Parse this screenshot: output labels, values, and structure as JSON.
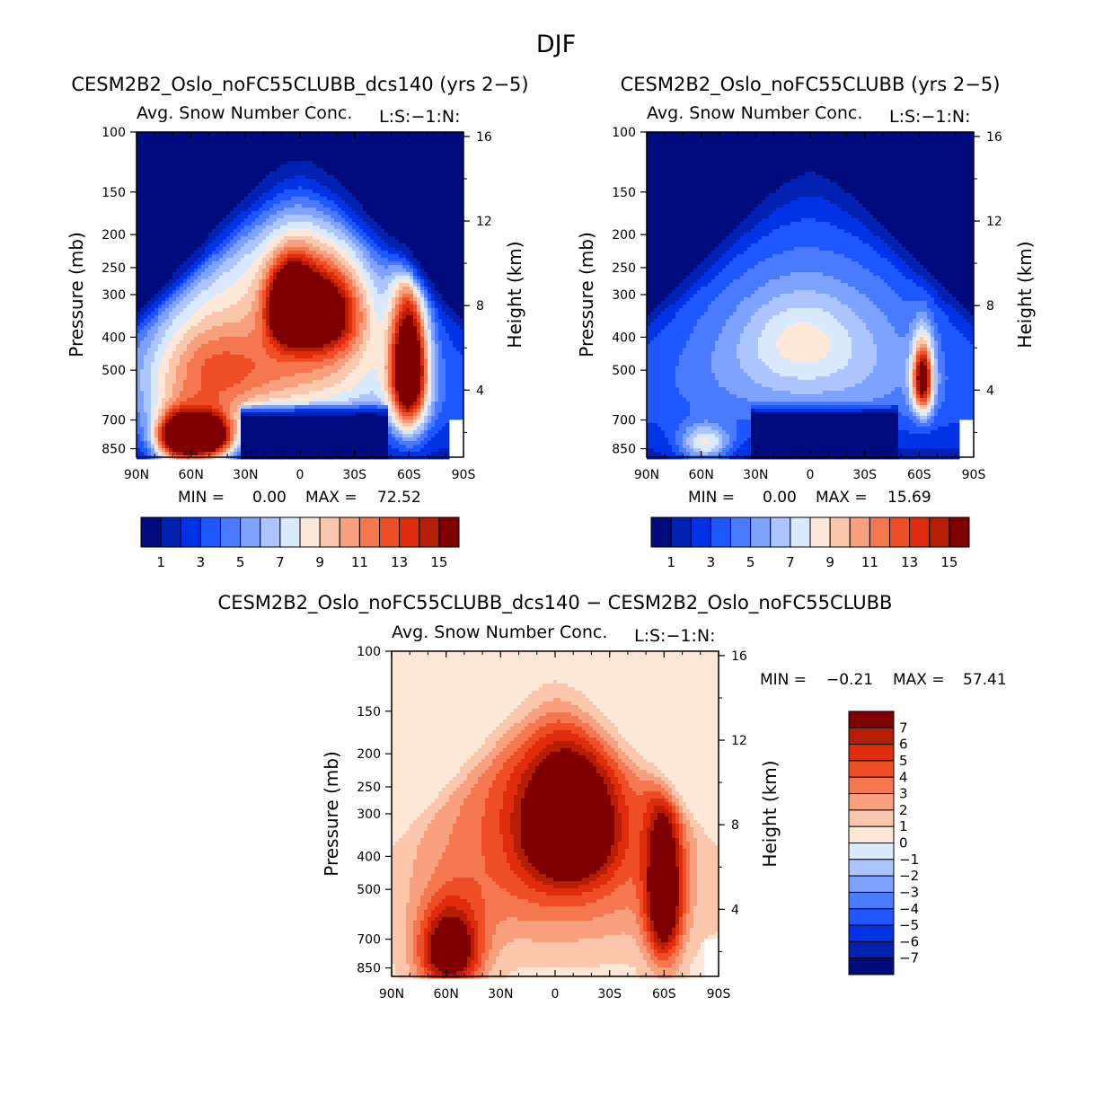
{
  "figure": {
    "title": "DJF",
    "field_label": "Avg. Snow Number Conc.",
    "level_label": "L:S:−1:N:",
    "ylabel": "Pressure (mb)",
    "ylabel_right": "Height (km)",
    "minmax_labels": {
      "min": "MIN =",
      "max": "MAX ="
    }
  },
  "colors": {
    "seq": [
      "#000c7d",
      "#0021b2",
      "#0032e6",
      "#1e56ff",
      "#4a7bff",
      "#7ea2ff",
      "#adc5ff",
      "#d9eaff",
      "#fde8d8",
      "#fbc7ac",
      "#f8a07e",
      "#f57750",
      "#ee4d26",
      "#de2c0d",
      "#b51d05",
      "#7f0000"
    ],
    "diverging": [
      "#000c7d",
      "#0021b2",
      "#0032e6",
      "#1e56ff",
      "#4a7bff",
      "#7ea2ff",
      "#adc5ff",
      "#d9eaff",
      "#fde8d8",
      "#fbc7ac",
      "#f8a07e",
      "#f57750",
      "#ee4d26",
      "#de2c0d",
      "#b51d05",
      "#7f0000"
    ]
  },
  "chart_data": [
    {
      "type": "heatmap",
      "id": "panel-a",
      "title": "CESM2B2_Oslo_noFC55CLUBB_dcs140 (yrs 2−5)",
      "xlabel": "",
      "xticks": [
        "90N",
        "60N",
        "30N",
        "0",
        "30S",
        "60S",
        "90S"
      ],
      "xlim": [
        90,
        -90
      ],
      "ylim_mb": [
        100,
        900
      ],
      "yticks_mb": [
        100,
        150,
        200,
        250,
        300,
        400,
        500,
        700,
        850
      ],
      "yticks_right_km": [
        16,
        12,
        8,
        4
      ],
      "min_value": "0.00",
      "max_value": "72.52",
      "colorbar_labels": [
        "1",
        "3",
        "5",
        "7",
        "9",
        "11",
        "13",
        "15"
      ],
      "features": [
        {
          "lat": 67,
          "p": 790,
          "amp": 16,
          "wlat": 9,
          "wp": 90
        },
        {
          "lat": 50,
          "p": 790,
          "amp": 16,
          "wlat": 10,
          "wp": 85
        },
        {
          "lat": -60,
          "p": 490,
          "amp": 16,
          "wlat": 7,
          "wp": 170
        },
        {
          "lat": 5,
          "p": 320,
          "amp": 13,
          "wlat": 8,
          "wp": 55
        },
        {
          "lat": -12,
          "p": 340,
          "amp": 11,
          "wlat": 16,
          "wp": 70
        },
        {
          "lat": 0,
          "p": 480,
          "amp": 8,
          "wlat": 45,
          "wp": 140
        },
        {
          "lat": 0,
          "p": 230,
          "amp": 5,
          "wlat": 35,
          "wp": 90
        },
        {
          "lat": 55,
          "p": 500,
          "amp": 6,
          "wlat": 25,
          "wp": 180
        }
      ]
    },
    {
      "type": "heatmap",
      "id": "panel-b",
      "title": "CESM2B2_Oslo_noFC55CLUBB (yrs 2−5)",
      "xlabel": "",
      "xticks": [
        "90N",
        "60N",
        "30N",
        "0",
        "30S",
        "60S",
        "90S"
      ],
      "xlim": [
        90,
        -90
      ],
      "ylim_mb": [
        100,
        900
      ],
      "yticks_mb": [
        100,
        150,
        200,
        250,
        300,
        400,
        500,
        700,
        850
      ],
      "yticks_right_km": [
        16,
        12,
        8,
        4
      ],
      "min_value": "0.00",
      "max_value": "15.69",
      "colorbar_labels": [
        "1",
        "3",
        "5",
        "7",
        "9",
        "11",
        "13",
        "15"
      ],
      "features": [
        {
          "lat": 0,
          "p": 420,
          "amp": 5,
          "wlat": 55,
          "wp": 180
        },
        {
          "lat": -62,
          "p": 530,
          "amp": 13,
          "wlat": 4,
          "wp": 90
        },
        {
          "lat": 58,
          "p": 820,
          "amp": 6,
          "wlat": 10,
          "wp": 70
        },
        {
          "lat": 5,
          "p": 400,
          "amp": 2,
          "wlat": 20,
          "wp": 80
        }
      ]
    },
    {
      "type": "heatmap",
      "id": "panel-c",
      "title": "CESM2B2_Oslo_noFC55CLUBB_dcs140 − CESM2B2_Oslo_noFC55CLUBB",
      "xlabel": "",
      "xticks": [
        "90N",
        "60N",
        "30N",
        "0",
        "30S",
        "60S",
        "90S"
      ],
      "xlim": [
        90,
        -90
      ],
      "ylim_mb": [
        100,
        900
      ],
      "yticks_mb": [
        100,
        150,
        200,
        250,
        300,
        400,
        500,
        700,
        850
      ],
      "yticks_right_km": [
        16,
        12,
        8,
        4
      ],
      "min_value": "−0.21",
      "max_value": "57.41",
      "colorbar_labels": [
        "7",
        "6",
        "5",
        "4",
        "3",
        "2",
        "1",
        "0",
        "−1",
        "−2",
        "−3",
        "−4",
        "−5",
        "−6",
        "−7"
      ],
      "features": [
        {
          "lat": 58,
          "p": 760,
          "amp": 9,
          "wlat": 12,
          "wp": 150
        },
        {
          "lat": -8,
          "p": 330,
          "amp": 9,
          "wlat": 16,
          "wp": 90
        },
        {
          "lat": -60,
          "p": 520,
          "amp": 9,
          "wlat": 7,
          "wp": 200
        },
        {
          "lat": 0,
          "p": 420,
          "amp": 4,
          "wlat": 50,
          "wp": 200
        },
        {
          "lat": 0,
          "p": 230,
          "amp": 2,
          "wlat": 35,
          "wp": 100
        }
      ]
    }
  ]
}
